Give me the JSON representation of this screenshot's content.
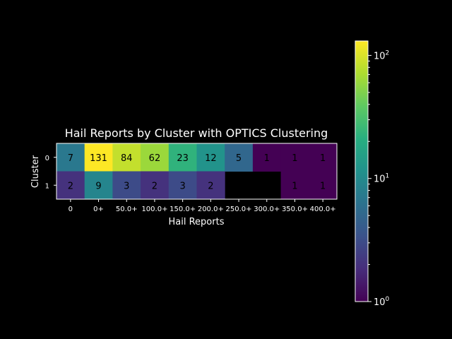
{
  "chart_data": {
    "type": "heatmap",
    "title": "Hail Reports by Cluster with OPTICS Clustering",
    "xlabel": "Hail Reports",
    "ylabel": "Cluster",
    "x_categories": [
      "0",
      "0+",
      "50.0+",
      "100.0+",
      "150.0+",
      "200.0+",
      "250.0+",
      "300.0+",
      "350.0+",
      "400.0+"
    ],
    "y_categories": [
      "0",
      "1"
    ],
    "values": [
      [
        7,
        131,
        84,
        62,
        23,
        12,
        5,
        1,
        1,
        1
      ],
      [
        2,
        9,
        3,
        2,
        3,
        2,
        null,
        null,
        1,
        1
      ]
    ],
    "colorbar": {
      "scale": "log",
      "range": [
        1,
        131
      ],
      "colormap": "viridis",
      "ticks": [
        {
          "value": 1,
          "base": "10",
          "exp": "0"
        },
        {
          "value": 10,
          "base": "10",
          "exp": "1"
        },
        {
          "value": 100,
          "base": "10",
          "exp": "2"
        }
      ]
    },
    "colors": {
      "background": "#000000",
      "text": "#ffffff",
      "cell_text": "#000000"
    }
  }
}
